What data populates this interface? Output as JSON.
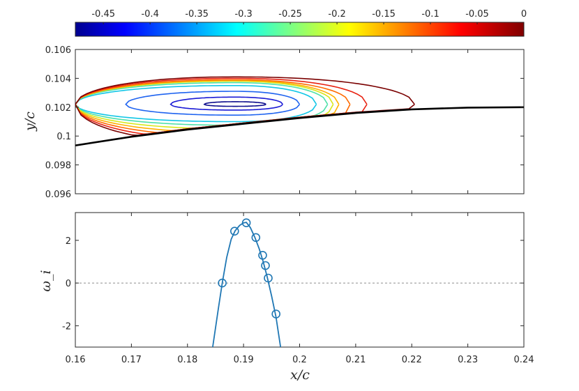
{
  "chart_data": [
    {
      "type": "contour",
      "panel": "top",
      "ylabel": "y/c",
      "xlim": [
        0.16,
        0.24
      ],
      "ylim": [
        0.096,
        0.106
      ],
      "yticks": [
        "0.096",
        "0.098",
        "0.1",
        "0.102",
        "0.104",
        "0.106"
      ],
      "colorbar": {
        "colormap": "jet",
        "range": [
          -0.48,
          0
        ],
        "ticks": [
          "-0.45",
          "-0.4",
          "-0.35",
          "-0.3",
          "-0.25",
          "-0.2",
          "-0.15",
          "-0.1",
          "-0.05",
          "0"
        ]
      },
      "contour_center": {
        "x": 0.1885,
        "y": 0.1022
      },
      "levels": [
        {
          "value": -0.47,
          "color": "#0a0a8c",
          "x_left": 0.183,
          "x_right": 0.194,
          "y_top": 0.10238,
          "y_bottom": 0.10206
        },
        {
          "value": -0.43,
          "color": "#1a1ad6",
          "x_left": 0.177,
          "x_right": 0.197,
          "y_top": 0.1027,
          "y_bottom": 0.1018
        },
        {
          "value": -0.36,
          "color": "#1e63f0",
          "x_left": 0.169,
          "x_right": 0.2,
          "y_top": 0.1031,
          "y_bottom": 0.10145
        },
        {
          "value": -0.3,
          "color": "#10c6e6",
          "x_left": 0.16,
          "x_right": 0.203,
          "y_top": 0.1035,
          "y_bottom": 0.101
        },
        {
          "value": -0.25,
          "color": "#4de0a8",
          "x_left": 0.16,
          "x_right": 0.205,
          "y_top": 0.1037,
          "y_bottom": 0.10075
        },
        {
          "value": -0.2,
          "color": "#d8e81a",
          "x_left": 0.16,
          "x_right": 0.206,
          "y_top": 0.1038,
          "y_bottom": 0.1005
        },
        {
          "value": -0.15,
          "color": "#ffb000",
          "x_left": 0.16,
          "x_right": 0.207,
          "y_top": 0.10385,
          "y_bottom": 0.10025
        },
        {
          "value": -0.1,
          "color": "#ff6a00",
          "x_left": 0.16,
          "x_right": 0.209,
          "y_top": 0.1039,
          "y_bottom": 0.1
        },
        {
          "value": -0.05,
          "color": "#e82010",
          "x_left": 0.16,
          "x_right": 0.212,
          "y_top": 0.104,
          "y_bottom": 0.09975
        },
        {
          "value": 0,
          "color": "#7a0000",
          "x_left": 0.16,
          "x_right": 0.2205,
          "y_top": 0.1041,
          "y_bottom": 0.0995
        }
      ],
      "wall": [
        {
          "x": 0.16,
          "y": 0.09935
        },
        {
          "x": 0.17,
          "y": 0.09995
        },
        {
          "x": 0.18,
          "y": 0.10045
        },
        {
          "x": 0.19,
          "y": 0.10085
        },
        {
          "x": 0.2,
          "y": 0.10125
        },
        {
          "x": 0.21,
          "y": 0.1016
        },
        {
          "x": 0.22,
          "y": 0.10185
        },
        {
          "x": 0.23,
          "y": 0.10197
        },
        {
          "x": 0.24,
          "y": 0.102
        }
      ]
    },
    {
      "type": "line",
      "panel": "bottom",
      "xlabel": "x/c",
      "ylabel": "ω_i",
      "xlim": [
        0.16,
        0.24
      ],
      "ylim": [
        -3,
        3.3
      ],
      "xticks": [
        "0.16",
        "0.17",
        "0.18",
        "0.19",
        "0.2",
        "0.21",
        "0.22",
        "0.23",
        "0.24"
      ],
      "yticks": [
        "-2",
        "0",
        "2"
      ],
      "zero_line": {
        "y": 0,
        "style": "dashed",
        "color": "#8c8c8c"
      },
      "series": [
        {
          "color": "#1f77b4",
          "curve": {
            "x": [
              0.1845,
              0.1855,
              0.1862,
              0.187,
              0.1878,
              0.1885,
              0.1893,
              0.19,
              0.1905,
              0.1912,
              0.192,
              0.1928,
              0.1935,
              0.1942,
              0.195,
              0.1958,
              0.1966
            ],
            "y": [
              -3.0,
              -1.2,
              0.0,
              1.2,
              2.05,
              2.45,
              2.7,
              2.82,
              2.84,
              2.6,
              2.15,
              1.6,
              1.0,
              0.3,
              -0.6,
              -1.6,
              -3.0
            ]
          },
          "markers": {
            "x": [
              0.1862,
              0.1884,
              0.1905,
              0.1922,
              0.1934,
              0.1939,
              0.1944,
              0.1958
            ],
            "y": [
              0.0,
              2.43,
              2.82,
              2.13,
              1.3,
              0.82,
              0.23,
              -1.45
            ]
          }
        }
      ]
    }
  ]
}
